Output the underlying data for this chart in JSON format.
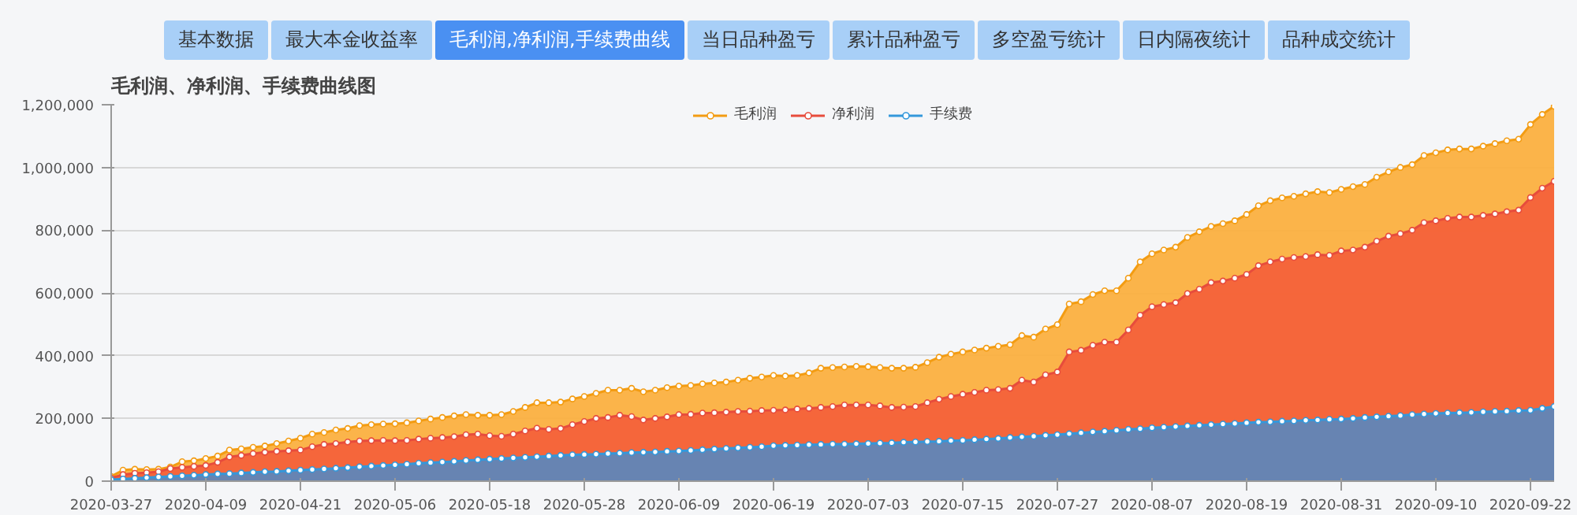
{
  "chart_data": {
    "type": "area",
    "title": "毛利润、净利润、手续费曲线图",
    "annotations": [
      "基本数据",
      "最大本金收益率",
      "毛利润,净利润,手续费曲线",
      "当日品种盈亏",
      "累计品种盈亏",
      "多空盈亏统计",
      "日内隔夜统计",
      "品种成交统计"
    ],
    "categories": [
      "2020-03-27",
      null,
      null,
      null,
      null,
      null,
      null,
      null,
      "2020-04-09",
      null,
      null,
      null,
      null,
      null,
      null,
      null,
      "2020-04-21",
      null,
      null,
      null,
      null,
      null,
      null,
      null,
      "2020-05-06",
      null,
      null,
      null,
      null,
      null,
      null,
      null,
      "2020-05-18",
      null,
      null,
      null,
      null,
      null,
      null,
      null,
      "2020-05-28",
      null,
      null,
      null,
      null,
      null,
      null,
      null,
      "2020-06-09",
      null,
      null,
      null,
      null,
      null,
      null,
      null,
      "2020-06-19",
      null,
      null,
      null,
      null,
      null,
      null,
      null,
      "2020-07-03",
      null,
      null,
      null,
      null,
      null,
      null,
      null,
      "2020-07-15",
      null,
      null,
      null,
      null,
      null,
      null,
      null,
      "2020-07-27",
      null,
      null,
      null,
      null,
      null,
      null,
      null,
      "2020-08-07",
      null,
      null,
      null,
      null,
      null,
      null,
      null,
      "2020-08-19",
      null,
      null,
      null,
      null,
      null,
      null,
      null,
      "2020-08-31",
      null,
      null,
      null,
      null,
      null,
      null,
      null,
      "2020-09-10",
      null,
      null,
      null,
      null,
      null,
      null,
      null,
      "2020-09-22",
      null,
      null
    ],
    "series": [
      {
        "name": "毛利润",
        "color": "#fbb040",
        "values": [
          15000,
          35000,
          38000,
          37000,
          38000,
          45000,
          62000,
          65000,
          72000,
          80000,
          99000,
          103000,
          108000,
          112000,
          120000,
          128000,
          137000,
          150000,
          155000,
          163000,
          168000,
          177000,
          180000,
          182000,
          183000,
          186000,
          192000,
          198000,
          203000,
          208000,
          212000,
          210000,
          210000,
          212000,
          222000,
          235000,
          250000,
          250000,
          252000,
          262000,
          270000,
          280000,
          290000,
          290000,
          296000,
          285000,
          290000,
          298000,
          303000,
          305000,
          310000,
          313000,
          316000,
          322000,
          328000,
          332000,
          337000,
          335000,
          337000,
          345000,
          360000,
          362000,
          364000,
          366000,
          365000,
          362000,
          360000,
          360000,
          363000,
          378000,
          395000,
          405000,
          412000,
          418000,
          424000,
          430000,
          435000,
          464000,
          459000,
          485000,
          499000,
          565000,
          572000,
          595000,
          607000,
          607000,
          647000,
          699000,
          725000,
          737000,
          746000,
          777000,
          795000,
          812000,
          821000,
          830000,
          850000,
          878000,
          894000,
          903000,
          908000,
          916000,
          923000,
          920000,
          930000,
          939000,
          946000,
          969000,
          986000,
          1000000,
          1009000,
          1038000,
          1047000,
          1056000,
          1059000,
          1059000,
          1068000,
          1076000,
          1085000,
          1090000,
          1137000,
          1169000,
          1195000
        ]
      },
      {
        "name": "净利润",
        "color": "#f4623a",
        "values": [
          10000,
          21000,
          25000,
          27000,
          30000,
          40000,
          44000,
          47000,
          50000,
          60000,
          77000,
          82000,
          88000,
          92000,
          95000,
          97000,
          99000,
          110000,
          117000,
          120000,
          125000,
          128000,
          129000,
          130000,
          129000,
          130000,
          134000,
          137000,
          139000,
          142000,
          148000,
          150000,
          145000,
          143000,
          150000,
          160000,
          169000,
          165000,
          168000,
          180000,
          190000,
          200000,
          203000,
          210000,
          206000,
          195000,
          200000,
          205000,
          212000,
          213000,
          217000,
          218000,
          220000,
          222000,
          223000,
          225000,
          226000,
          227000,
          230000,
          232000,
          235000,
          238000,
          243000,
          243000,
          243000,
          240000,
          235000,
          236000,
          238000,
          250000,
          261000,
          270000,
          277000,
          283000,
          290000,
          292000,
          296000,
          322000,
          316000,
          339000,
          348000,
          412000,
          417000,
          433000,
          443000,
          443000,
          482000,
          529000,
          556000,
          563000,
          569000,
          598000,
          612000,
          633000,
          638000,
          647000,
          659000,
          687000,
          699000,
          708000,
          713000,
          716000,
          722000,
          720000,
          734000,
          737000,
          746000,
          765000,
          781000,
          789000,
          800000,
          824000,
          830000,
          838000,
          842000,
          842000,
          847000,
          852000,
          859000,
          864000,
          904000,
          934000,
          956000
        ]
      },
      {
        "name": "手续费",
        "color": "#5f86b8",
        "values": [
          5000,
          7000,
          9000,
          11000,
          13000,
          15000,
          17000,
          19000,
          21000,
          23000,
          24000,
          26000,
          28000,
          30000,
          31000,
          33000,
          35000,
          37000,
          39000,
          41000,
          43000,
          46000,
          48000,
          50000,
          52000,
          54000,
          57000,
          59000,
          61000,
          63000,
          66000,
          68000,
          70000,
          72000,
          74000,
          76000,
          78000,
          80000,
          82000,
          84000,
          85000,
          86000,
          88000,
          89000,
          91000,
          92000,
          93000,
          95000,
          96000,
          98000,
          100000,
          102000,
          104000,
          106000,
          108000,
          110000,
          113000,
          114000,
          115000,
          116000,
          117000,
          118000,
          118000,
          119000,
          120000,
          121000,
          122000,
          124000,
          125000,
          126000,
          127000,
          129000,
          130000,
          132000,
          134000,
          136000,
          139000,
          141000,
          143000,
          146000,
          148000,
          151000,
          154000,
          157000,
          159000,
          162000,
          165000,
          167000,
          170000,
          172000,
          174000,
          176000,
          178000,
          180000,
          182000,
          184000,
          186000,
          188000,
          189000,
          191000,
          192000,
          194000,
          195000,
          197000,
          198000,
          200000,
          203000,
          205000,
          207000,
          209000,
          212000,
          214000,
          216000,
          217000,
          218000,
          219000,
          221000,
          222000,
          223000,
          225000,
          226000,
          232000,
          238000
        ]
      }
    ],
    "ylim": [
      0,
      1200000
    ],
    "yticks": [
      0,
      {
        "value": 200000,
        "label": "200,000"
      },
      {
        "value": 400000,
        "label": "400,000"
      },
      {
        "value": 600000,
        "label": "600,000"
      },
      {
        "value": 800000,
        "label": "800,000"
      },
      {
        "value": 1000000,
        "label": "1,000,000"
      },
      {
        "value": 1200000,
        "label": "1,200,000"
      }
    ],
    "grid": "y",
    "legend": "top",
    "marker": "circle",
    "line_style": "solid"
  }
}
